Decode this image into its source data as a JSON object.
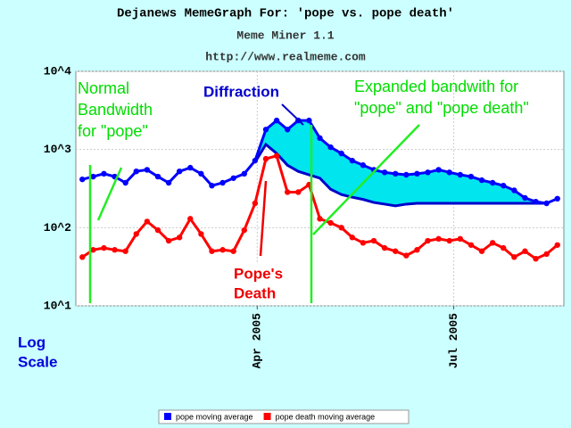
{
  "chart_data": {
    "type": "line",
    "title": "Dejanews MemeGraph For: 'pope vs. pope death'",
    "subtitle": "Meme Miner 1.1",
    "url": "http://www.realmeme.com",
    "y_label": [
      "Log",
      "Scale"
    ],
    "log_scale": true,
    "grid": true,
    "legend": "bottom",
    "x": [
      9,
      14,
      19,
      24,
      29,
      34,
      39,
      44,
      49,
      54,
      59,
      64,
      69,
      74,
      79,
      84,
      89,
      94,
      99,
      104,
      109,
      114,
      119,
      124,
      129,
      134,
      139,
      144,
      149,
      154,
      159,
      164,
      169,
      174,
      179,
      184,
      189,
      194,
      199,
      204,
      209,
      214,
      219,
      224,
      229
    ],
    "xlim": [
      6,
      232
    ],
    "xticks": [
      {
        "value": 90,
        "label": "Apr 2005"
      },
      {
        "value": 181,
        "label": "Jul 2005"
      }
    ],
    "ylim": [
      10,
      10000
    ],
    "yticks": [
      {
        "value": 10,
        "label": "10^1"
      },
      {
        "value": 100,
        "label": "10^2"
      },
      {
        "value": 1000,
        "label": "10^3"
      },
      {
        "value": 10000,
        "label": "10^4"
      }
    ],
    "series": [
      {
        "name": "pope moving average",
        "color": "#0000ff",
        "values": [
          415,
          450,
          490,
          450,
          375,
          525,
          550,
          450,
          375,
          525,
          585,
          490,
          345,
          375,
          430,
          490,
          720,
          1800,
          2350,
          1800,
          2350,
          2350,
          1400,
          1070,
          890,
          720,
          630,
          550,
          510,
          490,
          475,
          490,
          510,
          550,
          510,
          475,
          450,
          405,
          375,
          345,
          300,
          240,
          215,
          205,
          235
        ]
      },
      {
        "name": "pope death moving average",
        "color": "#ff0000",
        "values": [
          42,
          52,
          55,
          52,
          50,
          83,
          120,
          93,
          68,
          75,
          130,
          83,
          50,
          52,
          50,
          93,
          205,
          760,
          830,
          285,
          285,
          355,
          130,
          115,
          100,
          75,
          64,
          68,
          55,
          50,
          44,
          52,
          68,
          72,
          68,
          72,
          60,
          50,
          64,
          55,
          42,
          50,
          40,
          46,
          60
        ]
      }
    ],
    "fill_band": {
      "color": "#00e5ee",
      "line_color": "#0000cc",
      "x": [
        89,
        94,
        99,
        104,
        109,
        114,
        119,
        124,
        129,
        134,
        139,
        144,
        149,
        154,
        159,
        164,
        169,
        174,
        179,
        184,
        189,
        194,
        199,
        204,
        209,
        214,
        219,
        224
      ],
      "lower": [
        690,
        1160,
        890,
        630,
        525,
        475,
        430,
        310,
        265,
        245,
        230,
        210,
        200,
        190,
        200,
        205,
        205,
        205,
        205,
        205,
        205,
        205,
        205,
        205,
        205,
        205,
        205,
        205
      ]
    },
    "annotations": [
      {
        "text": [
          "Normal",
          "Bandwidth",
          "for \"pope\""
        ],
        "color": "#00dd00"
      },
      {
        "text": [
          "Diffraction"
        ],
        "color": "#0000cc"
      },
      {
        "text": [
          "Expanded bandwith for",
          "\"pope\" and \"pope death\""
        ],
        "color": "#00dd00"
      },
      {
        "text": [
          "Pope's",
          "Death"
        ],
        "color": "#ee0000"
      }
    ]
  }
}
